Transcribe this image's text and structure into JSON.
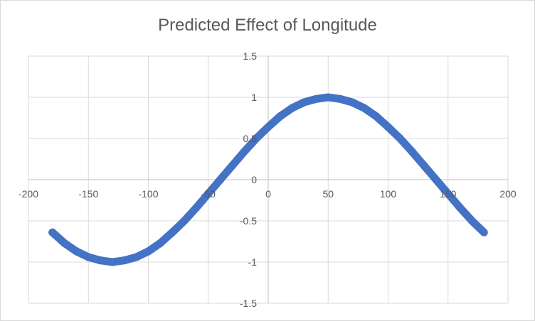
{
  "chart_data": {
    "type": "scatter",
    "title": "Predicted Effect of Longitude",
    "xlabel": "",
    "ylabel": "",
    "xlim": [
      -200,
      200
    ],
    "ylim": [
      -1.5,
      1.5
    ],
    "x_ticks": [
      -200,
      -150,
      -100,
      -50,
      0,
      50,
      100,
      150,
      200
    ],
    "x_tick_labels": [
      "-200",
      "-150",
      "-100",
      "-50",
      "0",
      "50",
      "100",
      "150",
      "200"
    ],
    "y_ticks": [
      -1.5,
      -1,
      -0.5,
      0,
      0.5,
      1,
      1.5
    ],
    "y_tick_labels": [
      "-1.5",
      "-1",
      "-0.5",
      "0",
      "0.5",
      "1",
      "1.5"
    ],
    "grid": true,
    "legend": "none",
    "color": "#4472C4",
    "series": [
      {
        "x": [
          -180,
          -170,
          -160,
          -150,
          -140,
          -130,
          -120,
          -110,
          -100,
          -90,
          -80,
          -70,
          -60,
          -50,
          -40,
          -30,
          -20,
          -10,
          0,
          10,
          20,
          30,
          40,
          50,
          60,
          70,
          80,
          90,
          100,
          110,
          120,
          130,
          140,
          150,
          160,
          170,
          180
        ],
        "y": [
          -0.64,
          -0.77,
          -0.87,
          -0.94,
          -0.98,
          -1.0,
          -0.98,
          -0.94,
          -0.87,
          -0.77,
          -0.64,
          -0.5,
          -0.34,
          -0.17,
          0.0,
          0.17,
          0.34,
          0.5,
          0.64,
          0.77,
          0.87,
          0.94,
          0.98,
          1.0,
          0.98,
          0.94,
          0.87,
          0.77,
          0.64,
          0.5,
          0.34,
          0.17,
          0.0,
          -0.17,
          -0.34,
          -0.5,
          -0.64
        ]
      }
    ]
  }
}
